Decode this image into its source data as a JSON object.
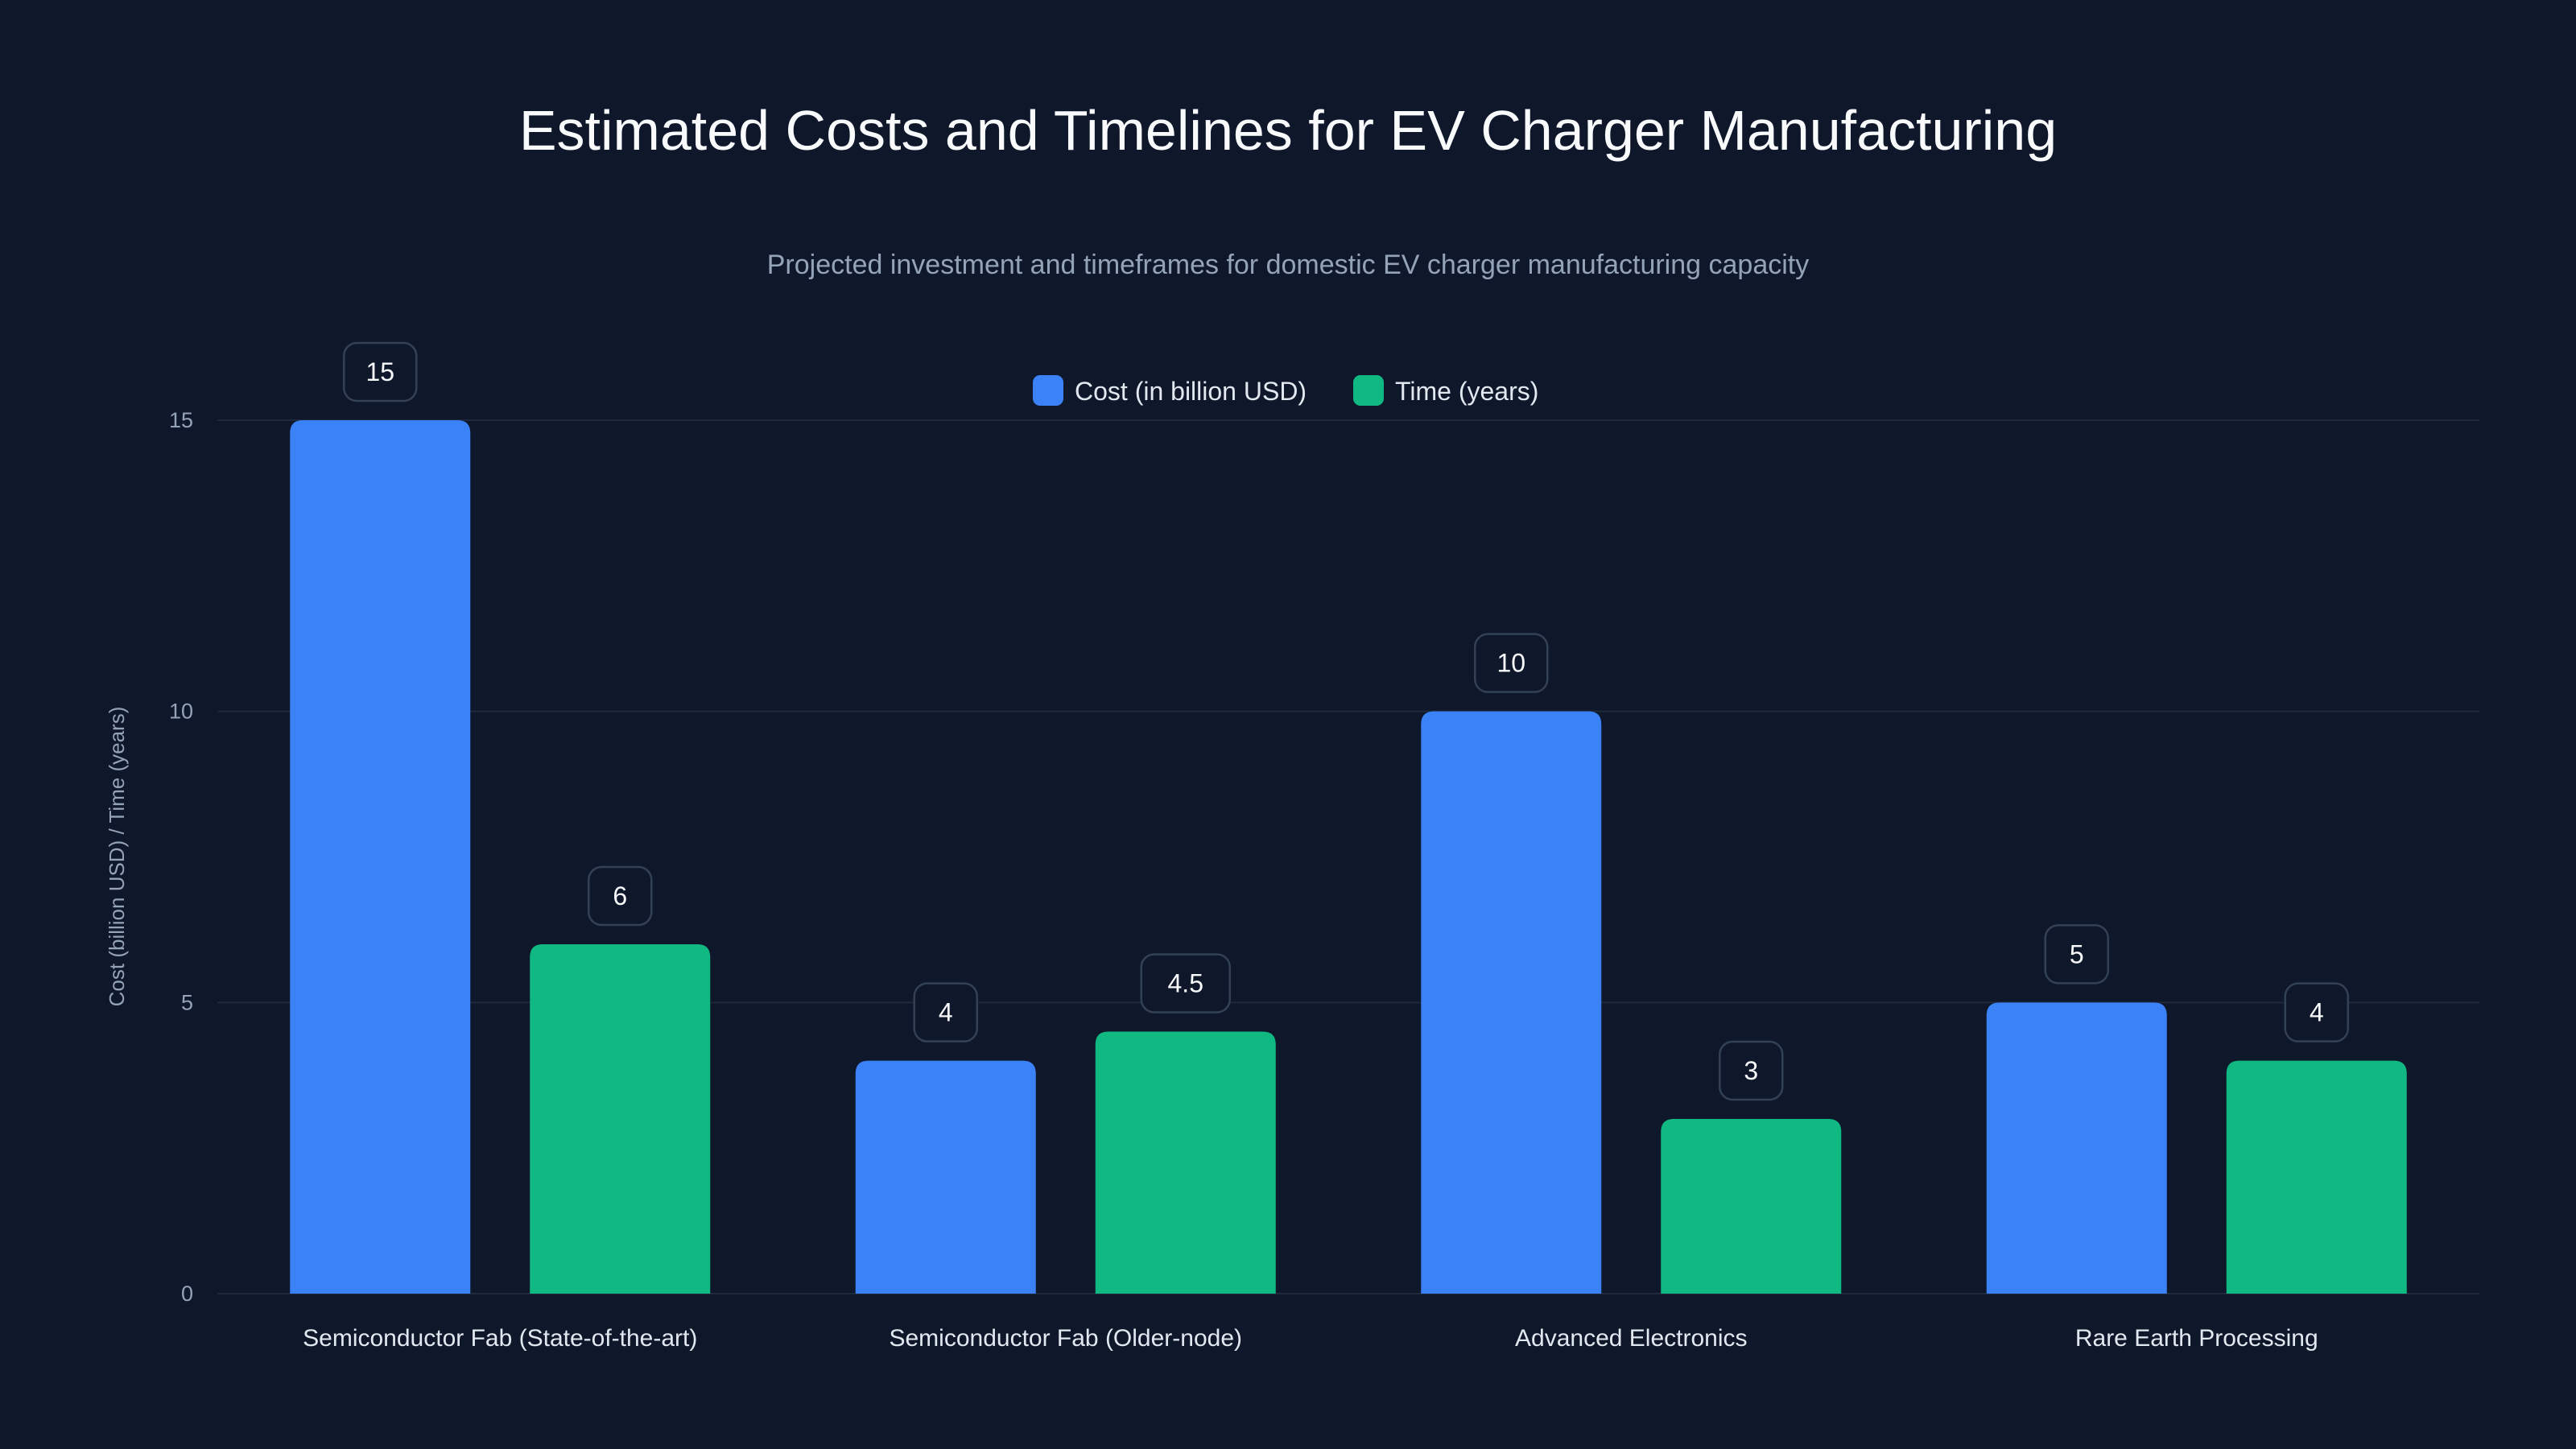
{
  "colors": {
    "background": "#0f172a",
    "cost": "#3b82f6",
    "time": "#10b981",
    "grid": "#1e293b",
    "text": "#e2e8f0",
    "muted": "#94a3b8"
  },
  "chart_data": {
    "type": "bar",
    "title": "Estimated Costs and Timelines for EV Charger Manufacturing",
    "subtitle": "Projected investment and timeframes for domestic EV charger manufacturing capacity",
    "xlabel": "",
    "ylabel": "Cost (billion USD) / Time (years)",
    "ylim": [
      0,
      15
    ],
    "yticks": [
      0,
      5,
      10,
      15
    ],
    "grid": true,
    "legend_position": "top-center",
    "categories": [
      "Semiconductor Fab (State-of-the-art)",
      "Semiconductor Fab (Older-node)",
      "Advanced Electronics",
      "Rare Earth Processing"
    ],
    "series": [
      {
        "name": "Cost (in billion USD)",
        "color": "#3b82f6",
        "values": [
          15,
          4,
          10,
          5
        ]
      },
      {
        "name": "Time (years)",
        "color": "#10b981",
        "values": [
          6,
          4.5,
          3,
          4
        ]
      }
    ]
  }
}
